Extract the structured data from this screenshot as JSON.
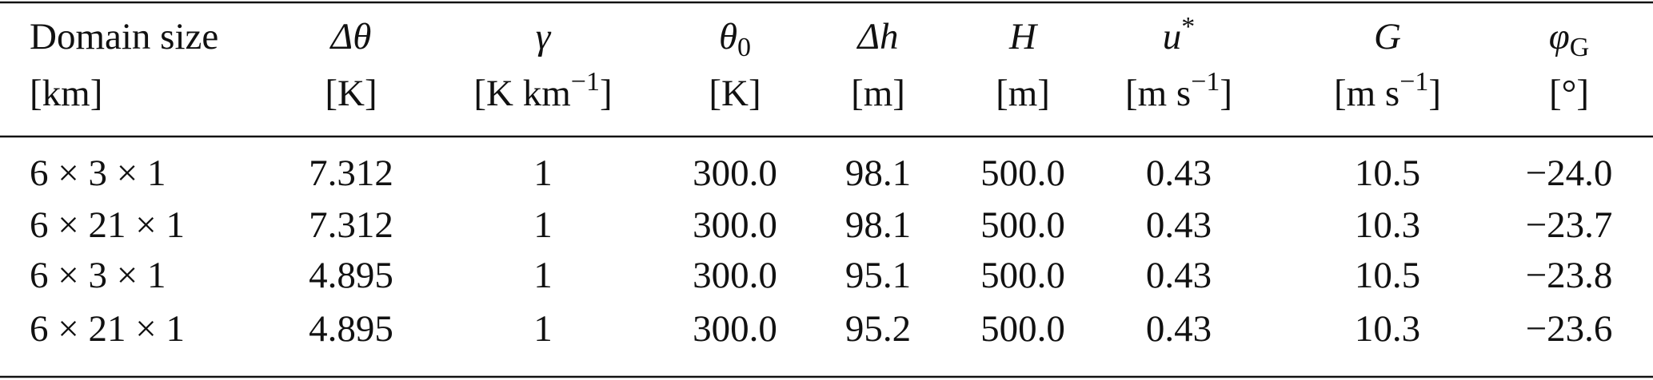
{
  "table": {
    "columns": [
      {
        "name": "Domain size",
        "unit": "[km]"
      },
      {
        "name": "Δθ",
        "unit": "[K]"
      },
      {
        "name": "γ",
        "unit": "[K km",
        "unit_sup": "−1",
        "unit_end": "]"
      },
      {
        "name": "θ",
        "name_sub": "0",
        "unit": "[K]"
      },
      {
        "name": "Δh",
        "unit": "[m]"
      },
      {
        "name": "H",
        "unit": "[m]"
      },
      {
        "name": "u",
        "name_sup": "*",
        "unit": "[m s",
        "unit_sup": "−1",
        "unit_end": "]"
      },
      {
        "name": "G",
        "unit": "[m s",
        "unit_sup": "−1",
        "unit_end": "]"
      },
      {
        "name": "φ",
        "name_sub": "G",
        "unit": "[°]"
      }
    ],
    "rows": [
      [
        "6 × 3 × 1",
        "7.312",
        "1",
        "300.0",
        "98.1",
        "500.0",
        "0.43",
        "10.5",
        "−24.0"
      ],
      [
        "6 × 21 × 1",
        "7.312",
        "1",
        "300.0",
        "98.1",
        "500.0",
        "0.43",
        "10.3",
        "−23.7"
      ],
      [
        "6 × 3 × 1",
        "4.895",
        "1",
        "300.0",
        "95.1",
        "500.0",
        "0.43",
        "10.5",
        "−23.8"
      ],
      [
        "6 × 21 × 1",
        "4.895",
        "1",
        "300.0",
        "95.2",
        "500.0",
        "0.43",
        "10.3",
        "−23.6"
      ]
    ]
  }
}
